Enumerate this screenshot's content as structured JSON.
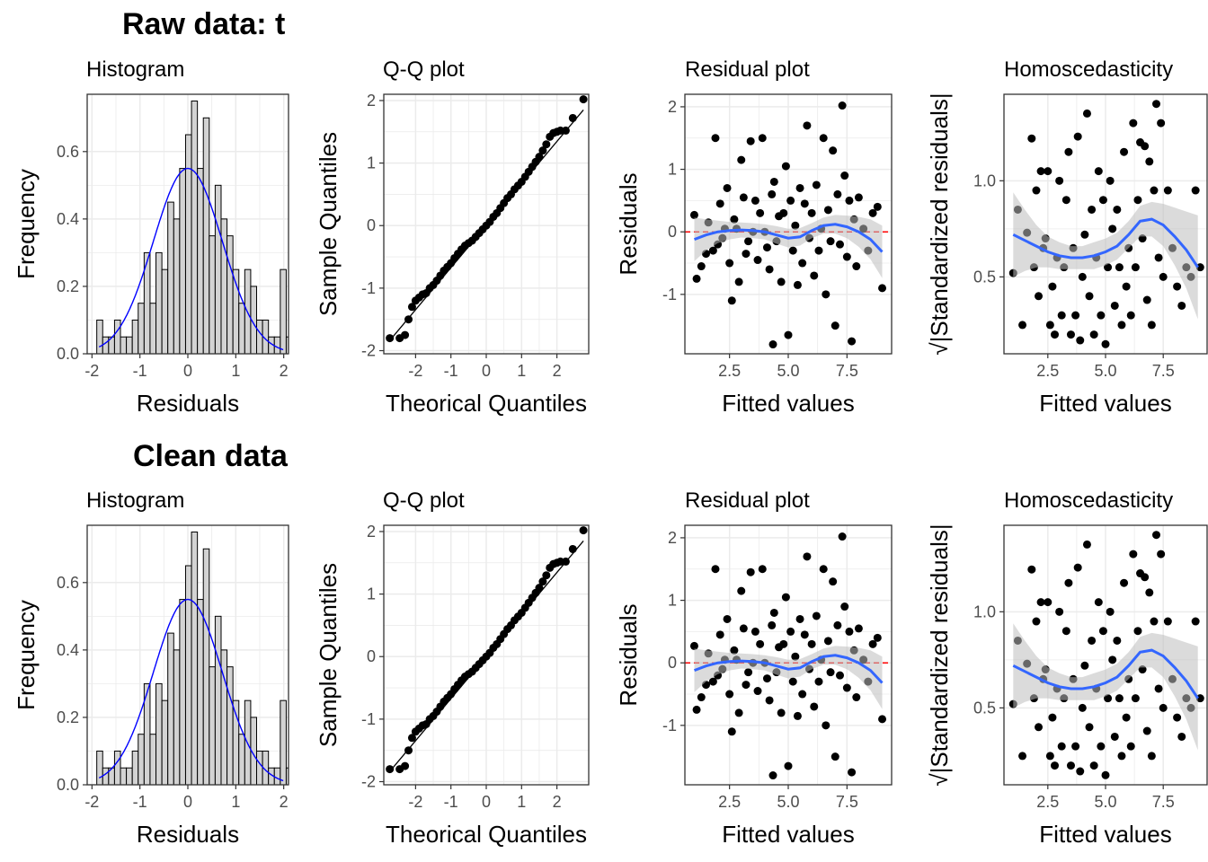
{
  "rows": [
    {
      "title": "Raw data: t"
    },
    {
      "title": "Clean data"
    }
  ],
  "colors": {
    "panel_border": "#333333",
    "grid": "#ebebeb",
    "hist_fill": "#d3d3d3",
    "density": "#0000ff",
    "smooth": "#3366ff",
    "ribbon": "#bdbdbd",
    "zero_line": "#ff0000",
    "points": "#000000"
  },
  "chart_data": [
    {
      "type": "bar",
      "panel": "histogram",
      "title": "Histogram",
      "xlabel": "Residuals",
      "ylabel": "Frequency",
      "xlim": [
        -2.1,
        2.1
      ],
      "ylim": [
        0,
        0.77
      ],
      "xticks": [
        "-2",
        "-1",
        "0",
        "1",
        "2"
      ],
      "xtick_values": [
        -2,
        -1,
        0,
        1,
        2
      ],
      "yticks": [
        "0.0",
        "0.2",
        "0.4",
        "0.6"
      ],
      "ytick_values": [
        0,
        0.2,
        0.4,
        0.6
      ],
      "bin_start": -1.9,
      "bin_width": 0.1235,
      "values": [
        0.1,
        0.05,
        0.05,
        0.1,
        0.05,
        0.05,
        0.1,
        0.15,
        0.3,
        0.15,
        0.3,
        0.25,
        0.45,
        0.4,
        0.55,
        0.65,
        0.75,
        0.55,
        0.7,
        0.35,
        0.5,
        0.4,
        0.35,
        0.25,
        0.15,
        0.25,
        0.2,
        0.1,
        0.1,
        0.05,
        0.05,
        0.25,
        0.05,
        0.0,
        0.05
      ],
      "density_curve": {
        "type": "normal",
        "mean": 0.0,
        "sd": 0.72,
        "peak": 0.55
      }
    },
    {
      "type": "scatter",
      "panel": "qq",
      "title": "Q-Q plot",
      "xlabel": "Theorical Quantiles",
      "ylabel": "Sample Quantiles",
      "xlim": [
        -2.9,
        2.9
      ],
      "ylim": [
        -2.05,
        2.1
      ],
      "xticks": [
        "-2",
        "-1",
        "0",
        "1",
        "2"
      ],
      "xtick_values": [
        -2,
        -1,
        0,
        1,
        2
      ],
      "yticks": [
        "-2",
        "-1",
        "0",
        "1",
        "2"
      ],
      "ytick_values": [
        -2,
        -1,
        0,
        1,
        2
      ],
      "reference_line": {
        "x": [
          -2.75,
          2.75
        ],
        "y": [
          -1.85,
          1.85
        ]
      },
      "points": [
        [
          -2.73,
          -1.8
        ],
        [
          -2.45,
          -1.8
        ],
        [
          -2.3,
          -1.75
        ],
        [
          -2.2,
          -1.5
        ],
        [
          -2.1,
          -1.3
        ],
        [
          -2.0,
          -1.2
        ],
        [
          -1.9,
          -1.15
        ],
        [
          -1.8,
          -1.1
        ],
        [
          -1.7,
          -1.08
        ],
        [
          -1.6,
          -1.0
        ],
        [
          -1.5,
          -0.95
        ],
        [
          -1.4,
          -0.88
        ],
        [
          -1.3,
          -0.8
        ],
        [
          -1.2,
          -0.72
        ],
        [
          -1.1,
          -0.66
        ],
        [
          -1.0,
          -0.6
        ],
        [
          -0.9,
          -0.52
        ],
        [
          -0.8,
          -0.45
        ],
        [
          -0.7,
          -0.38
        ],
        [
          -0.6,
          -0.32
        ],
        [
          -0.5,
          -0.28
        ],
        [
          -0.4,
          -0.24
        ],
        [
          -0.3,
          -0.18
        ],
        [
          -0.2,
          -0.12
        ],
        [
          -0.1,
          -0.06
        ],
        [
          0.0,
          0.0
        ],
        [
          0.1,
          0.06
        ],
        [
          0.2,
          0.14
        ],
        [
          0.3,
          0.2
        ],
        [
          0.4,
          0.28
        ],
        [
          0.5,
          0.36
        ],
        [
          0.6,
          0.44
        ],
        [
          0.7,
          0.5
        ],
        [
          0.8,
          0.58
        ],
        [
          0.9,
          0.64
        ],
        [
          1.0,
          0.7
        ],
        [
          1.1,
          0.78
        ],
        [
          1.2,
          0.86
        ],
        [
          1.3,
          0.94
        ],
        [
          1.4,
          1.02
        ],
        [
          1.5,
          1.1
        ],
        [
          1.6,
          1.2
        ],
        [
          1.7,
          1.3
        ],
        [
          1.8,
          1.42
        ],
        [
          1.9,
          1.48
        ],
        [
          2.0,
          1.5
        ],
        [
          2.1,
          1.52
        ],
        [
          2.25,
          1.52
        ],
        [
          2.45,
          1.72
        ],
        [
          2.75,
          2.02
        ]
      ]
    },
    {
      "type": "scatter",
      "panel": "residual",
      "title": "Residual plot",
      "xlabel": "Fitted values",
      "ylabel": "Residuals",
      "xlim": [
        0.6,
        9.4
      ],
      "ylim": [
        -1.95,
        2.2
      ],
      "xticks": [
        "2.5",
        "5.0",
        "7.5"
      ],
      "xtick_values": [
        2.5,
        5.0,
        7.5
      ],
      "yticks": [
        "-1",
        "0",
        "1",
        "2"
      ],
      "ytick_values": [
        -1,
        0,
        1,
        2
      ],
      "zero_line": 0,
      "smooth": {
        "x": [
          1.0,
          1.5,
          2.0,
          2.5,
          3.0,
          3.5,
          4.0,
          4.5,
          5.0,
          5.5,
          6.0,
          6.5,
          7.0,
          7.5,
          8.0,
          8.5,
          9.0
        ],
        "y": [
          -0.12,
          -0.05,
          0.0,
          0.02,
          0.03,
          0.02,
          0.0,
          -0.05,
          -0.1,
          -0.08,
          0.02,
          0.1,
          0.12,
          0.08,
          0.0,
          -0.12,
          -0.32
        ],
        "se": [
          0.35,
          0.25,
          0.18,
          0.14,
          0.12,
          0.12,
          0.12,
          0.14,
          0.15,
          0.14,
          0.12,
          0.13,
          0.15,
          0.18,
          0.24,
          0.32,
          0.42
        ]
      },
      "points": [
        [
          1.0,
          0.27
        ],
        [
          1.1,
          -0.75
        ],
        [
          1.3,
          -0.55
        ],
        [
          1.5,
          -0.35
        ],
        [
          1.6,
          0.15
        ],
        [
          1.8,
          -0.3
        ],
        [
          1.9,
          1.5
        ],
        [
          2.0,
          -0.2
        ],
        [
          2.1,
          0.45
        ],
        [
          2.2,
          -0.1
        ],
        [
          2.3,
          0.05
        ],
        [
          2.4,
          0.7
        ],
        [
          2.5,
          -0.5
        ],
        [
          2.6,
          -1.1
        ],
        [
          2.7,
          0.2
        ],
        [
          2.8,
          0.05
        ],
        [
          2.9,
          -0.8
        ],
        [
          3.0,
          1.15
        ],
        [
          3.1,
          0.55
        ],
        [
          3.2,
          -0.35
        ],
        [
          3.3,
          -0.15
        ],
        [
          3.4,
          1.45
        ],
        [
          3.5,
          0.0
        ],
        [
          3.6,
          0.5
        ],
        [
          3.7,
          -0.45
        ],
        [
          3.8,
          0.3
        ],
        [
          3.9,
          1.5
        ],
        [
          4.0,
          0.0
        ],
        [
          4.1,
          -0.25
        ],
        [
          4.2,
          -0.6
        ],
        [
          4.3,
          0.6
        ],
        [
          4.35,
          -1.8
        ],
        [
          4.4,
          0.8
        ],
        [
          4.5,
          -0.15
        ],
        [
          4.6,
          0.25
        ],
        [
          4.7,
          -0.8
        ],
        [
          4.8,
          0.3
        ],
        [
          4.9,
          1.05
        ],
        [
          5.0,
          -1.65
        ],
        [
          5.1,
          0.5
        ],
        [
          5.2,
          -0.3
        ],
        [
          5.3,
          0.1
        ],
        [
          5.4,
          -0.85
        ],
        [
          5.5,
          0.7
        ],
        [
          5.6,
          -0.5
        ],
        [
          5.7,
          0.45
        ],
        [
          5.8,
          1.7
        ],
        [
          5.9,
          -0.1
        ],
        [
          6.0,
          0.3
        ],
        [
          6.1,
          -0.7
        ],
        [
          6.2,
          0.75
        ],
        [
          6.3,
          -0.3
        ],
        [
          6.4,
          0.05
        ],
        [
          6.5,
          1.5
        ],
        [
          6.6,
          -1.0
        ],
        [
          6.7,
          0.35
        ],
        [
          6.8,
          -0.15
        ],
        [
          6.9,
          1.3
        ],
        [
          7.0,
          -1.5
        ],
        [
          7.1,
          0.6
        ],
        [
          7.2,
          -0.2
        ],
        [
          7.3,
          2.02
        ],
        [
          7.4,
          0.9
        ],
        [
          7.5,
          -0.4
        ],
        [
          7.6,
          0.5
        ],
        [
          7.7,
          -1.75
        ],
        [
          7.8,
          0.2
        ],
        [
          7.9,
          -0.55
        ],
        [
          8.0,
          0.55
        ],
        [
          8.2,
          0.05
        ],
        [
          8.4,
          -0.3
        ],
        [
          8.6,
          0.3
        ],
        [
          8.8,
          0.4
        ],
        [
          9.0,
          -0.9
        ]
      ]
    },
    {
      "type": "scatter",
      "panel": "homoscedasticity",
      "title": "Homoscedasticity",
      "xlabel": "Fitted values",
      "ylabel": "√|Standardized residuals|",
      "xlim": [
        0.6,
        9.4
      ],
      "ylim": [
        0.1,
        1.45
      ],
      "xticks": [
        "2.5",
        "5.0",
        "7.5"
      ],
      "xtick_values": [
        2.5,
        5.0,
        7.5
      ],
      "yticks": [
        "0.5",
        "1.0"
      ],
      "ytick_values": [
        0.5,
        1.0
      ],
      "smooth": {
        "x": [
          1.0,
          1.5,
          2.0,
          2.5,
          3.0,
          3.5,
          4.0,
          4.5,
          5.0,
          5.5,
          6.0,
          6.5,
          7.0,
          7.5,
          8.0,
          8.5,
          9.0
        ],
        "y": [
          0.72,
          0.69,
          0.66,
          0.63,
          0.61,
          0.6,
          0.6,
          0.61,
          0.63,
          0.66,
          0.72,
          0.79,
          0.8,
          0.77,
          0.71,
          0.64,
          0.55
        ],
        "se": [
          0.22,
          0.16,
          0.11,
          0.08,
          0.07,
          0.06,
          0.06,
          0.07,
          0.07,
          0.07,
          0.07,
          0.08,
          0.09,
          0.11,
          0.15,
          0.2,
          0.27
        ]
      },
      "points": [
        [
          1.0,
          0.52
        ],
        [
          1.2,
          0.85
        ],
        [
          1.4,
          0.25
        ],
        [
          1.6,
          0.73
        ],
        [
          1.8,
          1.22
        ],
        [
          1.9,
          0.55
        ],
        [
          2.0,
          0.95
        ],
        [
          2.1,
          0.4
        ],
        [
          2.2,
          1.05
        ],
        [
          2.3,
          0.65
        ],
        [
          2.4,
          0.7
        ],
        [
          2.5,
          1.05
        ],
        [
          2.6,
          0.25
        ],
        [
          2.7,
          0.45
        ],
        [
          2.8,
          0.2
        ],
        [
          2.9,
          0.6
        ],
        [
          3.0,
          1.0
        ],
        [
          3.1,
          0.3
        ],
        [
          3.2,
          0.55
        ],
        [
          3.3,
          0.9
        ],
        [
          3.4,
          1.15
        ],
        [
          3.5,
          0.2
        ],
        [
          3.6,
          0.65
        ],
        [
          3.7,
          0.3
        ],
        [
          3.8,
          1.23
        ],
        [
          3.9,
          0.17
        ],
        [
          4.0,
          0.5
        ],
        [
          4.1,
          0.72
        ],
        [
          4.2,
          1.35
        ],
        [
          4.3,
          0.4
        ],
        [
          4.4,
          0.85
        ],
        [
          4.5,
          0.2
        ],
        [
          4.6,
          0.6
        ],
        [
          4.7,
          1.05
        ],
        [
          4.8,
          0.3
        ],
        [
          4.9,
          0.9
        ],
        [
          5.0,
          0.15
        ],
        [
          5.1,
          0.55
        ],
        [
          5.2,
          1.0
        ],
        [
          5.3,
          0.75
        ],
        [
          5.4,
          0.35
        ],
        [
          5.5,
          0.85
        ],
        [
          5.6,
          0.55
        ],
        [
          5.7,
          0.25
        ],
        [
          5.8,
          1.15
        ],
        [
          5.9,
          0.45
        ],
        [
          6.0,
          0.65
        ],
        [
          6.1,
          0.3
        ],
        [
          6.2,
          1.3
        ],
        [
          6.3,
          0.55
        ],
        [
          6.4,
          0.9
        ],
        [
          6.5,
          1.2
        ],
        [
          6.6,
          0.7
        ],
        [
          6.7,
          1.18
        ],
        [
          6.8,
          0.38
        ],
        [
          6.9,
          1.1
        ],
        [
          7.0,
          0.25
        ],
        [
          7.1,
          0.95
        ],
        [
          7.2,
          1.4
        ],
        [
          7.3,
          0.6
        ],
        [
          7.4,
          1.3
        ],
        [
          7.5,
          0.5
        ],
        [
          7.7,
          0.95
        ],
        [
          7.9,
          0.65
        ],
        [
          8.1,
          0.45
        ],
        [
          8.3,
          0.35
        ],
        [
          8.5,
          0.55
        ],
        [
          8.7,
          0.5
        ],
        [
          8.9,
          0.95
        ],
        [
          9.1,
          0.55
        ]
      ]
    }
  ]
}
